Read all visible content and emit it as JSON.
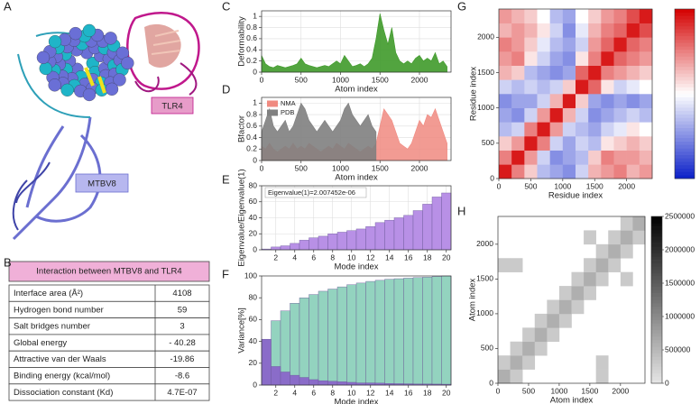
{
  "panel_labels": [
    "A",
    "B",
    "C",
    "D",
    "E",
    "F",
    "G",
    "H"
  ],
  "structure": {
    "labels": [
      "TLR4",
      "MTBV8"
    ]
  },
  "table": {
    "title": "Interaction between MTBV8 and TLR4",
    "rows": [
      [
        "Interface area (Å²)",
        "4108"
      ],
      [
        "Hydrogen bond number",
        "59"
      ],
      [
        "Salt bridges number",
        "3"
      ],
      [
        "Global energy",
        "- 40.28"
      ],
      [
        "Attractive van der Waals",
        "-19.86"
      ],
      [
        "Binding energy (kcal/mol)",
        "-8.6"
      ],
      [
        "Dissociation constant (Kd)",
        "4.7E-07"
      ]
    ]
  },
  "chart_data": [
    {
      "type": "area",
      "x_label": "Atom index",
      "y_label": "Deformability",
      "grid": true,
      "x": [
        0,
        50,
        100,
        150,
        200,
        250,
        300,
        350,
        400,
        450,
        500,
        550,
        600,
        650,
        700,
        750,
        800,
        850,
        900,
        950,
        1000,
        1050,
        1100,
        1150,
        1200,
        1250,
        1300,
        1350,
        1400,
        1450,
        1500,
        1550,
        1600,
        1650,
        1700,
        1750,
        1800,
        1850,
        1900,
        1950,
        2000,
        2050,
        2100,
        2150,
        2200,
        2250,
        2300,
        2350
      ],
      "series": [
        {
          "color": "#3f9a2a",
          "values": [
            0.3,
            0.15,
            0.1,
            0.08,
            0.12,
            0.1,
            0.08,
            0.1,
            0.12,
            0.15,
            0.25,
            0.15,
            0.12,
            0.1,
            0.08,
            0.1,
            0.12,
            0.1,
            0.15,
            0.2,
            0.15,
            0.3,
            0.2,
            0.1,
            0.12,
            0.15,
            0.1,
            0.15,
            0.25,
            0.6,
            1.05,
            0.75,
            0.5,
            0.8,
            0.35,
            0.2,
            0.15,
            0.2,
            0.15,
            0.25,
            0.3,
            0.2,
            0.25,
            0.2,
            0.35,
            0.15,
            0.2,
            0.1
          ]
        }
      ],
      "xlim": [
        0,
        2400
      ],
      "xticks": [
        0,
        500,
        1000,
        1500,
        2000
      ],
      "ylim": [
        0,
        1.1
      ],
      "yticks": [
        0,
        0.2,
        0.4,
        0.6,
        0.8,
        1
      ]
    },
    {
      "type": "area",
      "x_label": "Atom index",
      "y_label": "Bfactor",
      "grid": true,
      "legend": "upper left",
      "x": [
        0,
        50,
        100,
        150,
        200,
        250,
        300,
        350,
        400,
        450,
        500,
        550,
        600,
        650,
        700,
        750,
        800,
        850,
        900,
        950,
        1000,
        1050,
        1100,
        1150,
        1200,
        1250,
        1300,
        1350,
        1400,
        1450,
        1500,
        1550,
        1600,
        1650,
        1700,
        1750,
        1800,
        1850,
        1900,
        1950,
        2000,
        2050,
        2100,
        2150,
        2200,
        2250,
        2300,
        2350
      ],
      "series": [
        {
          "name": "NMA",
          "color": "#f08a80",
          "values": [
            0.25,
            0.2,
            0.3,
            0.2,
            0.15,
            0.2,
            0.25,
            0.2,
            0.3,
            0.2,
            0.25,
            0.2,
            0.3,
            0.25,
            0.2,
            0.15,
            0.2,
            0.25,
            0.2,
            0.3,
            0.25,
            0.2,
            0.3,
            0.25,
            0.2,
            0.15,
            0.2,
            0.25,
            0.2,
            0.3,
            0.6,
            0.9,
            0.8,
            0.7,
            0.5,
            0.3,
            0.25,
            0.2,
            0.3,
            0.5,
            0.7,
            0.6,
            0.8,
            0.75,
            0.9,
            0.7,
            0.5,
            0.3
          ]
        },
        {
          "name": "PDB",
          "color": "#808080",
          "values": [
            0.5,
            0.7,
            0.9,
            0.6,
            0.5,
            0.6,
            0.7,
            0.5,
            0.6,
            0.8,
            1.0,
            0.9,
            0.7,
            0.6,
            0.5,
            0.6,
            0.7,
            0.6,
            0.5,
            0.6,
            0.7,
            0.9,
            1.0,
            0.8,
            0.7,
            0.6,
            0.7,
            0.8,
            0.6,
            0.5,
            null,
            null,
            null,
            null,
            null,
            null,
            null,
            null,
            null,
            null,
            null,
            null,
            null,
            null,
            null,
            null,
            null,
            null
          ]
        }
      ],
      "xlim": [
        0,
        2400
      ],
      "xticks": [
        0,
        500,
        1000,
        1500,
        2000
      ],
      "ylim": [
        0,
        1.1
      ],
      "yticks": [
        0,
        0.2,
        0.4,
        0.6,
        0.8,
        1
      ]
    },
    {
      "type": "bar",
      "x_label": "Mode index",
      "y_label": "Eigenvalue/Eigenvalue(1)",
      "annotation": "Eigenvalue(1)=2.007452e-06",
      "grid": true,
      "x": [
        1,
        2,
        3,
        4,
        5,
        6,
        7,
        8,
        9,
        10,
        11,
        12,
        13,
        14,
        15,
        16,
        17,
        18,
        19,
        20
      ],
      "series": [
        {
          "color": "#b890e6",
          "values": [
            1,
            3.5,
            5,
            8,
            12,
            15,
            17,
            20,
            22,
            24,
            26,
            29,
            34,
            37,
            40,
            43,
            49,
            57,
            66,
            71
          ]
        }
      ],
      "xlim": [
        0.5,
        20.5
      ],
      "xticks": [
        2,
        4,
        6,
        8,
        10,
        12,
        14,
        16,
        18,
        20
      ],
      "ylim": [
        0,
        80
      ],
      "yticks": [
        0,
        20,
        40,
        60,
        80
      ]
    },
    {
      "type": "bar",
      "x_label": "Mode index",
      "y_label": "Variance[%]",
      "grid": false,
      "x": [
        1,
        2,
        3,
        4,
        5,
        6,
        7,
        8,
        9,
        10,
        11,
        12,
        13,
        14,
        15,
        16,
        17,
        18,
        19,
        20
      ],
      "series": [
        {
          "color": "#93d3bf",
          "values": [
            42,
            59,
            68,
            75,
            80,
            83,
            86,
            88,
            90,
            92,
            93.5,
            95,
            96,
            97,
            97.5,
            98,
            98.5,
            99,
            99.5,
            100
          ]
        },
        {
          "color": "#8a6cc9",
          "values": [
            42,
            17,
            12,
            9,
            7,
            5,
            4,
            3.5,
            3,
            2.5,
            2,
            2,
            1.8,
            1.5,
            1.3,
            1.2,
            1,
            1,
            0.9,
            0.8
          ]
        }
      ],
      "xlim": [
        0.5,
        20.5
      ],
      "xticks": [
        2,
        4,
        6,
        8,
        10,
        12,
        14,
        16,
        18,
        20
      ],
      "ylim": [
        0,
        100
      ],
      "yticks": [
        0,
        20,
        40,
        60,
        80,
        100
      ]
    },
    {
      "type": "heatmap",
      "x_label": "Residue index",
      "y_label": "Residue index",
      "xbins": [
        0,
        200,
        400,
        600,
        800,
        1000,
        1200,
        1400,
        1600,
        1800,
        2000,
        2200,
        2400
      ],
      "ybins": [
        0,
        200,
        400,
        600,
        800,
        1000,
        1200,
        1400,
        1600,
        1800,
        2000,
        2200,
        2400
      ],
      "z": [
        [
          0.9,
          0.5,
          0.2,
          -0.3,
          -0.4,
          -0.5,
          -0.2,
          0.3,
          0.4,
          0.5,
          0.3,
          0.4
        ],
        [
          0.5,
          0.9,
          0.4,
          -0.2,
          -0.5,
          -0.4,
          -0.3,
          0.2,
          0.5,
          0.4,
          0.4,
          0.3
        ],
        [
          0.2,
          0.4,
          0.9,
          0.5,
          -0.2,
          -0.4,
          -0.2,
          -0.3,
          0.1,
          0.2,
          0.3,
          0.2
        ],
        [
          -0.3,
          -0.2,
          0.5,
          0.9,
          0.4,
          -0.2,
          -0.3,
          -0.4,
          -0.2,
          -0.1,
          0.1,
          0.0
        ],
        [
          -0.4,
          -0.5,
          -0.2,
          0.4,
          0.9,
          0.3,
          -0.2,
          -0.5,
          -0.4,
          -0.3,
          -0.2,
          -0.3
        ],
        [
          -0.5,
          -0.4,
          -0.4,
          -0.2,
          0.3,
          0.9,
          0.2,
          -0.4,
          -0.5,
          -0.4,
          -0.5,
          -0.4
        ],
        [
          -0.2,
          -0.3,
          -0.2,
          -0.3,
          -0.2,
          0.2,
          0.9,
          0.6,
          0.1,
          -0.2,
          -0.1,
          0.0
        ],
        [
          0.3,
          0.2,
          -0.3,
          -0.4,
          -0.5,
          -0.4,
          0.6,
          0.9,
          0.5,
          0.4,
          0.3,
          0.2
        ],
        [
          0.4,
          0.5,
          0.1,
          -0.2,
          -0.4,
          -0.5,
          0.1,
          0.5,
          0.9,
          0.6,
          0.5,
          0.4
        ],
        [
          0.5,
          0.4,
          0.2,
          -0.1,
          -0.3,
          -0.4,
          -0.2,
          0.4,
          0.6,
          0.9,
          0.6,
          0.5
        ],
        [
          0.3,
          0.4,
          0.3,
          0.1,
          -0.2,
          -0.5,
          -0.1,
          0.3,
          0.5,
          0.6,
          0.9,
          0.7
        ],
        [
          0.4,
          0.3,
          0.2,
          0.0,
          -0.3,
          -0.4,
          0.0,
          0.2,
          0.4,
          0.5,
          0.7,
          0.9
        ]
      ],
      "zlim": [
        -1,
        1
      ],
      "colors": [
        "#0a1fc8",
        "#ffffff",
        "#d40000"
      ],
      "xlim": [
        0,
        2400
      ],
      "xticks": [
        0,
        500,
        1000,
        1500,
        2000
      ],
      "ylim": [
        0,
        2400
      ],
      "yticks": [
        0,
        500,
        1000,
        1500,
        2000
      ]
    },
    {
      "type": "heatmap",
      "x_label": "Atom index",
      "y_label": "Atom index",
      "xbins": [
        0,
        200,
        400,
        600,
        800,
        1000,
        1200,
        1400,
        1600,
        1800,
        2000,
        2200,
        2400
      ],
      "ybins": [
        0,
        200,
        400,
        600,
        800,
        1000,
        1200,
        1400,
        1600,
        1800,
        2000,
        2200,
        2400
      ],
      "z": [
        [
          600000,
          300000,
          null,
          null,
          null,
          null,
          null,
          null,
          300000,
          null,
          null,
          null
        ],
        [
          300000,
          600000,
          300000,
          null,
          null,
          null,
          null,
          null,
          300000,
          null,
          null,
          null
        ],
        [
          null,
          300000,
          600000,
          300000,
          null,
          null,
          null,
          null,
          null,
          null,
          null,
          null
        ],
        [
          null,
          null,
          300000,
          600000,
          300000,
          null,
          null,
          null,
          null,
          null,
          null,
          null
        ],
        [
          null,
          null,
          null,
          300000,
          600000,
          300000,
          null,
          null,
          null,
          null,
          null,
          null
        ],
        [
          null,
          null,
          null,
          null,
          300000,
          600000,
          300000,
          null,
          null,
          null,
          null,
          null
        ],
        [
          null,
          null,
          null,
          null,
          null,
          300000,
          600000,
          300000,
          null,
          null,
          null,
          null
        ],
        [
          null,
          null,
          null,
          null,
          null,
          null,
          300000,
          600000,
          300000,
          null,
          300000,
          null
        ],
        [
          300000,
          300000,
          null,
          null,
          null,
          null,
          null,
          300000,
          600000,
          300000,
          null,
          null
        ],
        [
          null,
          null,
          null,
          null,
          null,
          null,
          null,
          null,
          300000,
          600000,
          300000,
          null
        ],
        [
          null,
          null,
          null,
          null,
          null,
          null,
          null,
          300000,
          null,
          300000,
          600000,
          300000
        ],
        [
          null,
          null,
          null,
          null,
          null,
          null,
          null,
          null,
          null,
          null,
          300000,
          600000
        ]
      ],
      "zlim": [
        0,
        2500000
      ],
      "zticks": [
        0,
        500000,
        1000000,
        1500000,
        2000000,
        2500000
      ],
      "colors": [
        "#e6e6e6",
        "#000000"
      ],
      "xlim": [
        0,
        2400
      ],
      "xticks": [
        0,
        500,
        1000,
        1500,
        2000
      ],
      "ylim": [
        0,
        2400
      ],
      "yticks": [
        0,
        500,
        1000,
        1500,
        2000
      ]
    }
  ]
}
